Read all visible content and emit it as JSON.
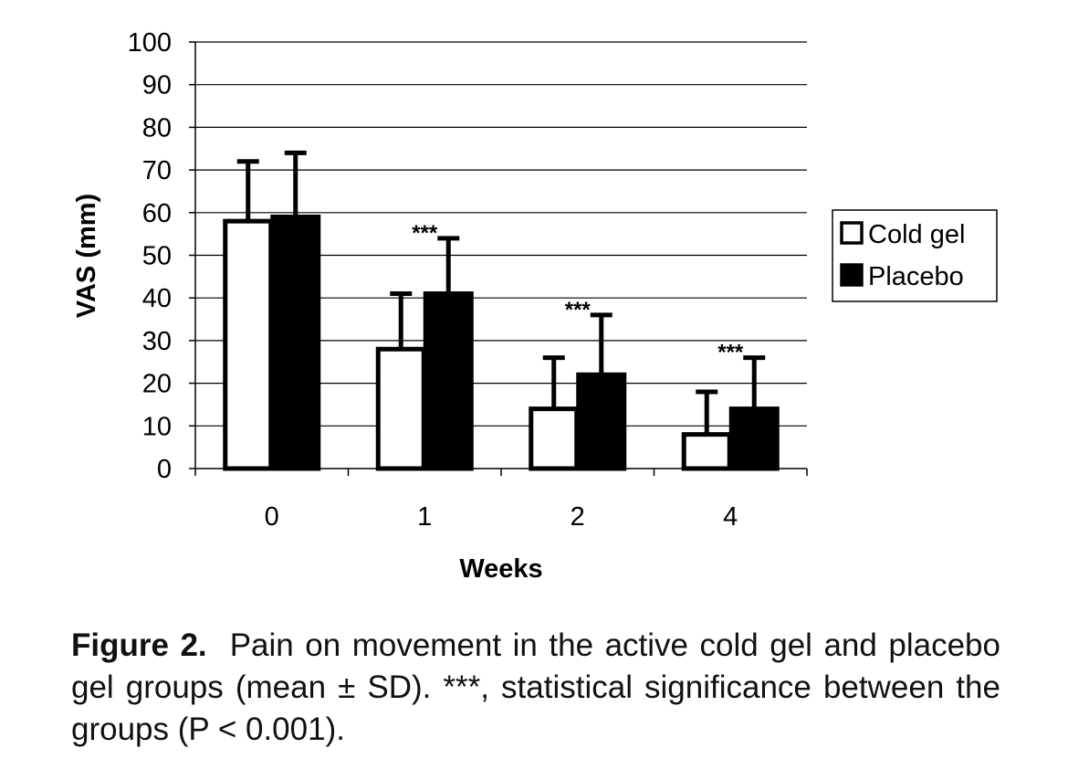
{
  "chart_data": {
    "type": "bar",
    "categories": [
      "0",
      "1",
      "2",
      "4"
    ],
    "xlabel": "Weeks",
    "ylabel": "VAS (mm)",
    "ylim": [
      0,
      100
    ],
    "yticks": [
      0,
      10,
      20,
      30,
      40,
      50,
      60,
      70,
      80,
      90,
      100
    ],
    "grid": true,
    "legend_position": "right",
    "series": [
      {
        "name": "Cold gel",
        "fill": "#ffffff",
        "values": [
          58,
          28,
          14,
          8
        ],
        "errors": [
          14,
          13,
          12,
          10
        ]
      },
      {
        "name": "Placebo",
        "fill": "#000000",
        "values": [
          59,
          41,
          22,
          14
        ],
        "errors": [
          15,
          13,
          14,
          12
        ]
      }
    ],
    "annotations": [
      {
        "category": "1",
        "text": "***"
      },
      {
        "category": "2",
        "text": "***"
      },
      {
        "category": "4",
        "text": "***"
      }
    ]
  },
  "caption": {
    "label": "Figure 2.",
    "text": "Pain on movement in the active cold gel and placebo gel groups (mean ± SD). ***, statistical significance between the groups (P < 0.001)."
  }
}
